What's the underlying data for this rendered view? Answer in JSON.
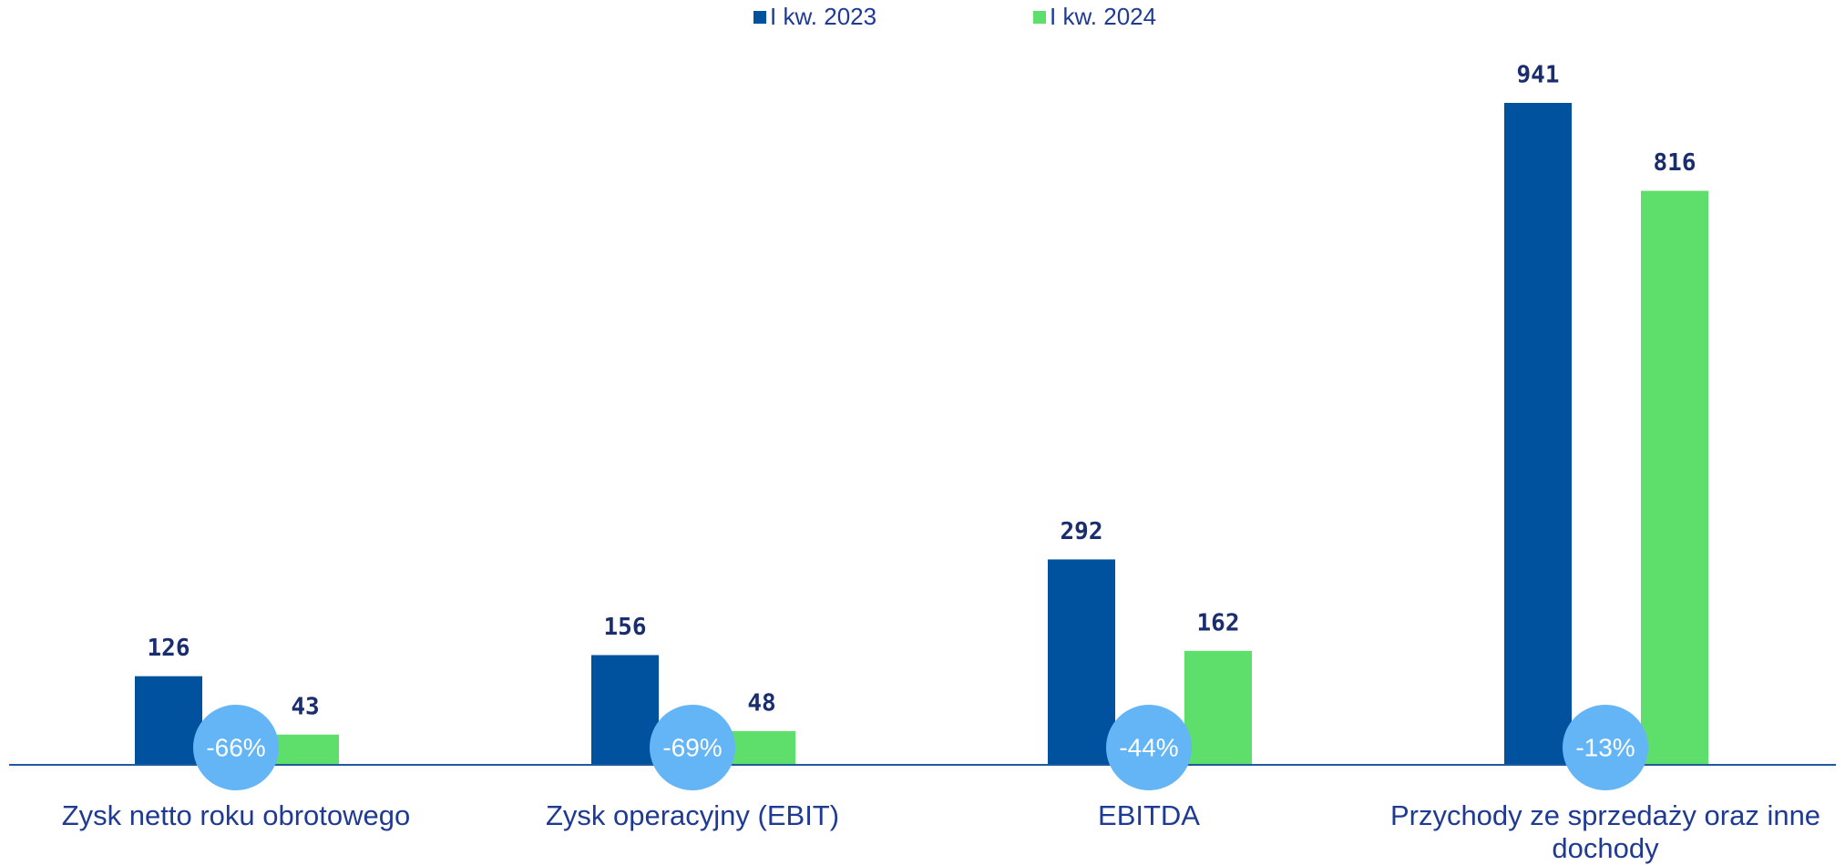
{
  "chart_data": {
    "type": "bar",
    "categories": [
      "Zysk netto roku obrotowego",
      "Zysk operacyjny (EBIT)",
      "EBITDA",
      "Przychody ze sprzedaży oraz inne dochody"
    ],
    "series": [
      {
        "name": "I kw. 2023",
        "color": "#00529f",
        "values": [
          126,
          156,
          292,
          941
        ]
      },
      {
        "name": "I kw. 2024",
        "color": "#5ede6a",
        "values": [
          43,
          48,
          162,
          816
        ]
      }
    ],
    "changes": [
      "-66%",
      "-69%",
      "-44%",
      "-13%"
    ],
    "change_color": "#64b5f6",
    "legend": "top"
  }
}
